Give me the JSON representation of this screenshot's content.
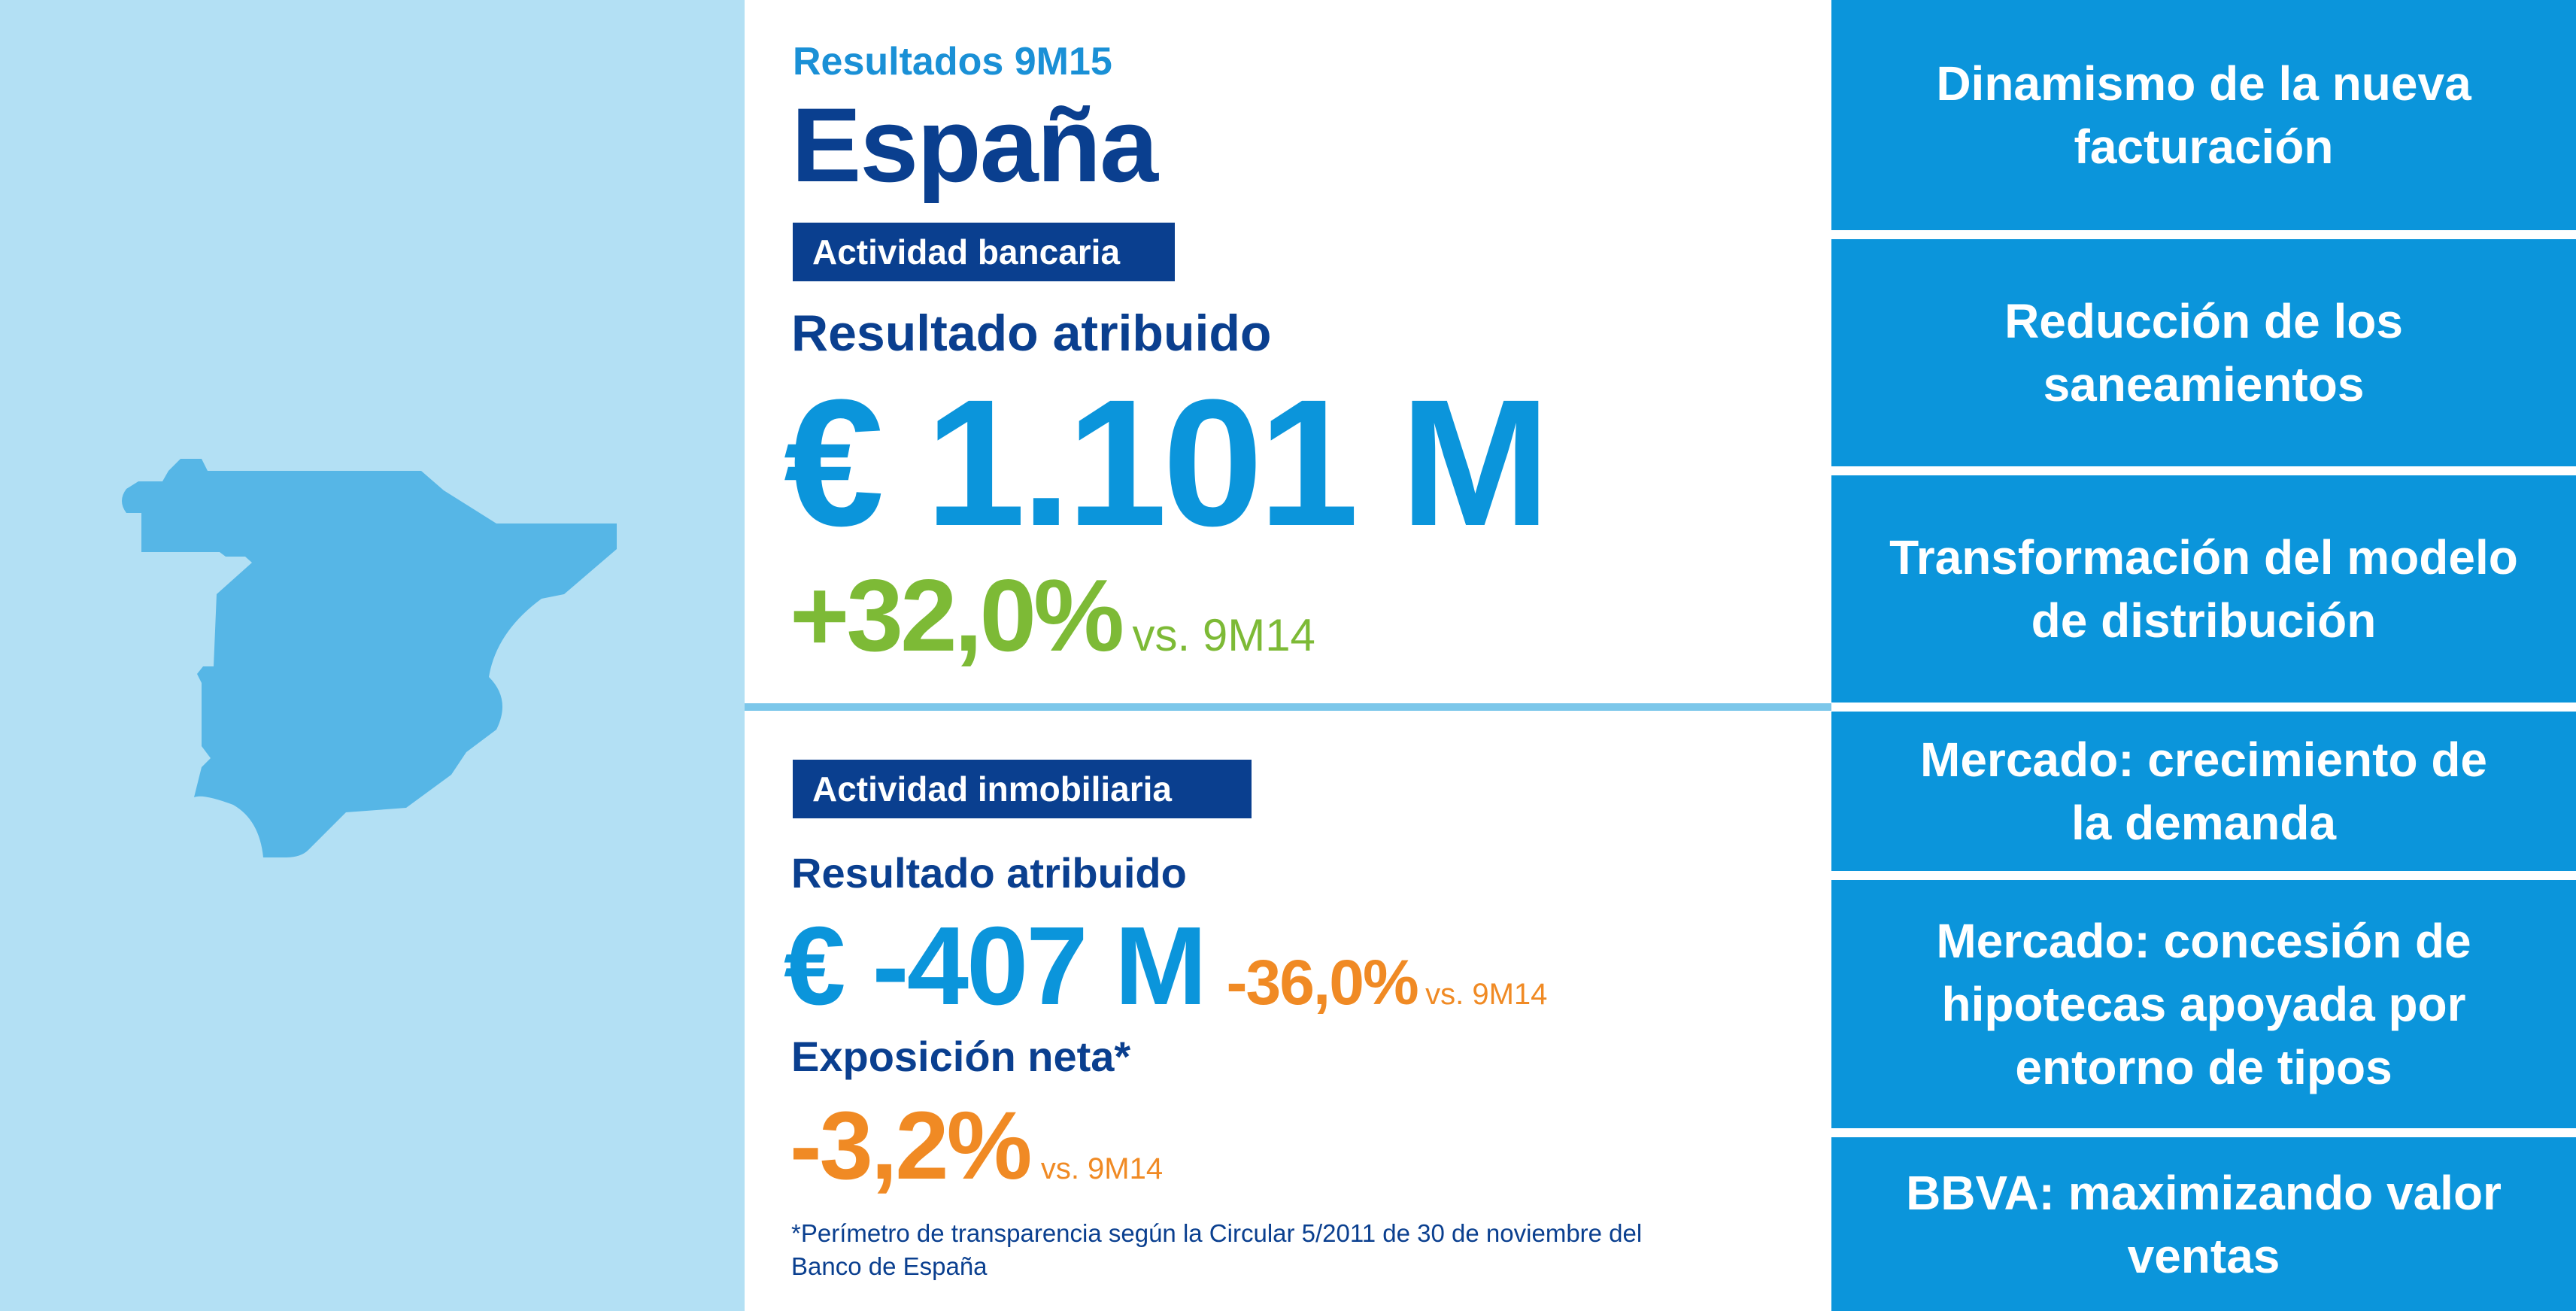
{
  "header": {
    "period": "Resultados 9M15",
    "country": "España"
  },
  "banking": {
    "badge": "Actividad bancaria",
    "label": "Resultado atribuido",
    "value": "€ 1.101 M",
    "change": "+32,0%",
    "compare": "vs. 9M14"
  },
  "real_estate": {
    "badge": "Actividad inmobiliaria",
    "label": "Resultado atribuido",
    "value": "€ -407 M",
    "change": "-36,0%",
    "compare": "vs. 9M14",
    "exposure_label": "Exposición neta*",
    "exposure_change": "-3,2%",
    "exposure_compare": "vs. 9M14",
    "footnote_line1": "*Perímetro de transparencia según la Circular 5/2011 de 30 de noviembre del",
    "footnote_line2": "Banco de España"
  },
  "highlights": [
    {
      "line1": "Dinamismo de la nueva",
      "line2": "facturación"
    },
    {
      "line1": "Reducción de los",
      "line2": "saneamientos"
    },
    {
      "line1": "Transformación del modelo",
      "line2": "de distribución"
    },
    {
      "line1": "Mercado: crecimiento de",
      "line2": "la demanda"
    },
    {
      "line1": "Mercado: concesión de",
      "line2": "hipotecas apoyada por",
      "line3": "entorno de tipos"
    },
    {
      "line1": "BBVA: maximizando valor",
      "line2": "ventas"
    }
  ],
  "colors": {
    "light_blue_bg": "#b3e0f4",
    "map_blue": "#56b6e6",
    "dark_blue": "#0a3f8f",
    "brand_blue": "#0b95db",
    "green": "#7dba36",
    "orange": "#f08a24"
  }
}
